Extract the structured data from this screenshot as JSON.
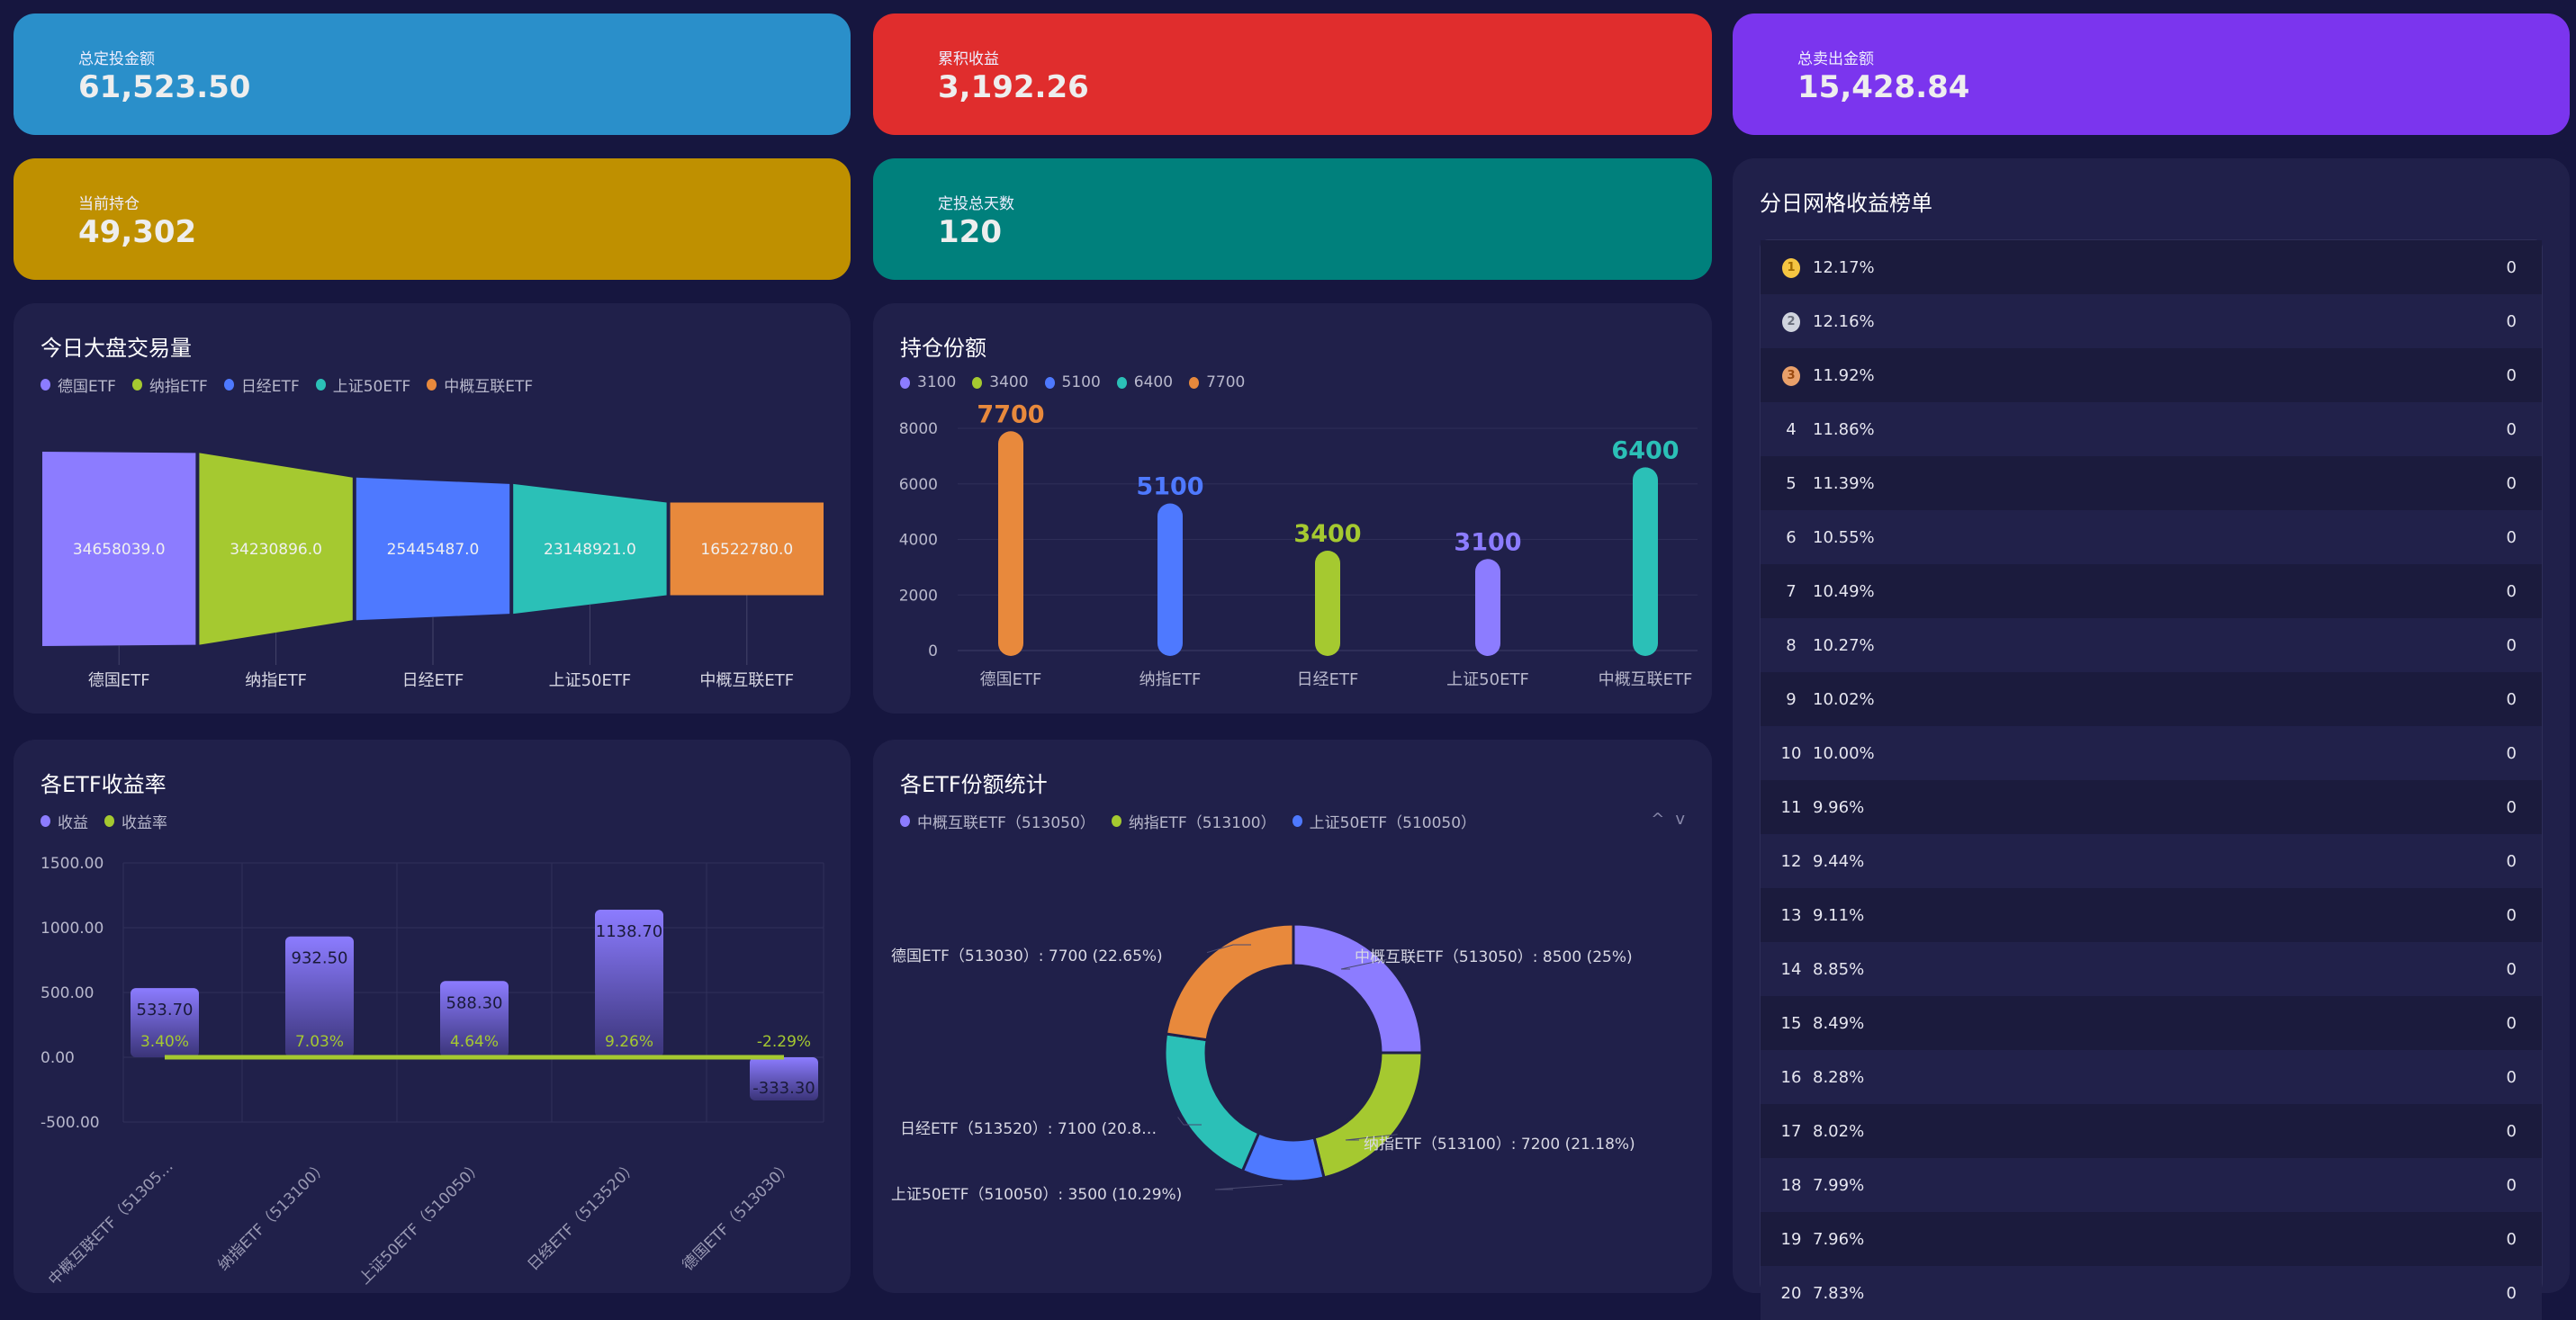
{
  "stats": [
    {
      "label": "总定投金额",
      "value": "61,523.50",
      "color": "#2a8fca"
    },
    {
      "label": "累积收益",
      "value": "3,192.26",
      "color": "#e02d2d"
    },
    {
      "label": "总卖出金额",
      "value": "15,428.84",
      "color": "#7b35ee"
    },
    {
      "label": "当前持仓",
      "value": "49,302",
      "color": "#bf9000"
    },
    {
      "label": "定投总天数",
      "value": "120",
      "color": "#00807c"
    }
  ],
  "colors": {
    "purple": "#8c7cff",
    "green": "#a5c930",
    "blue": "#4e79ff",
    "teal": "#2bc0b7",
    "orange": "#e8893c"
  },
  "chart_data": [
    {
      "type": "funnel",
      "title": "今日大盘交易量",
      "orientation": "horizontal",
      "categories": [
        "德国ETF",
        "纳指ETF",
        "日经ETF",
        "上证50ETF",
        "中概互联ETF"
      ],
      "values": [
        34658039.0,
        34230896.0,
        25445487.0,
        23148921.0,
        16522780.0
      ],
      "labels": [
        "34658039.0",
        "34230896.0",
        "25445487.0",
        "23148921.0",
        "16522780.0"
      ],
      "legend": [
        "德国ETF",
        "纳指ETF",
        "日经ETF",
        "上证50ETF",
        "中概互联ETF"
      ],
      "series_colors": [
        "#8c7cff",
        "#a5c930",
        "#4e79ff",
        "#2bc0b7",
        "#e8893c"
      ],
      "legend_position": "top-left"
    },
    {
      "type": "bar",
      "title": "持仓份额",
      "categories": [
        "德国ETF",
        "纳指ETF",
        "日经ETF",
        "上证50ETF",
        "中概互联ETF"
      ],
      "values": [
        7700,
        5100,
        3400,
        3100,
        6400
      ],
      "bar_colors": [
        "#e8893c",
        "#4e79ff",
        "#a5c930",
        "#8c7cff",
        "#2bc0b7"
      ],
      "legend": [
        "3100",
        "3400",
        "5100",
        "6400",
        "7700"
      ],
      "legend_colors": [
        "#8c7cff",
        "#a5c930",
        "#4e79ff",
        "#2bc0b7",
        "#e8893c"
      ],
      "yticks": [
        "0",
        "2000",
        "4000",
        "6000",
        "8000"
      ],
      "ylim": [
        0,
        8000
      ],
      "grid": true,
      "legend_position": "top-left"
    },
    {
      "type": "bar",
      "title": "各ETF收益率",
      "categories": [
        "中概互联ETF（51305…",
        "纳指ETF（513100）",
        "上证50ETF（510050）",
        "日经ETF（513520）",
        "德国ETF（513030）"
      ],
      "series": [
        {
          "name": "收益",
          "values": [
            533.7,
            932.5,
            588.3,
            1138.7,
            -333.3
          ],
          "labels": [
            "533.70",
            "932.50",
            "588.30",
            "1138.70",
            "-333.30"
          ],
          "color": "#8c7cff"
        },
        {
          "name": "收益率",
          "type": "line",
          "values": [
            3.4,
            7.03,
            4.64,
            9.26,
            -2.29
          ],
          "labels": [
            "3.40%",
            "7.03%",
            "4.64%",
            "9.26%",
            "-2.29%"
          ],
          "color": "#a5c930"
        }
      ],
      "yticks": [
        "1500.00",
        "1000.00",
        "500.00",
        "0.00",
        "-500.00"
      ],
      "ylim": [
        -500,
        1500
      ],
      "grid": true,
      "legend_position": "top-left"
    },
    {
      "type": "pie",
      "title": "各ETF份额统计",
      "donut": true,
      "slices": [
        {
          "name": "中概互联ETF（513050）",
          "value": 8500,
          "label": "中概互联ETF（513050）: 8500 (25%)",
          "color": "#8c7cff"
        },
        {
          "name": "纳指ETF（513100）",
          "value": 7200,
          "label": "纳指ETF（513100）: 7200 (21.18%)",
          "color": "#a5c930"
        },
        {
          "name": "上证50ETF（510050）",
          "value": 3500,
          "label": "上证50ETF（510050）: 3500 (10.29%)",
          "color": "#4e79ff"
        },
        {
          "name": "日经ETF（513520）",
          "value": 7100,
          "label": "日经ETF（513520）: 7100 (20.8…",
          "color": "#2bc0b7"
        },
        {
          "name": "德国ETF（513030）",
          "value": 7700,
          "label": "德国ETF（513030）: 7700 (22.65%)",
          "color": "#e8893c"
        }
      ],
      "legend": [
        "中概互联ETF（513050）",
        "纳指ETF（513100）",
        "上证50ETF（510050）"
      ],
      "legend_position": "top-left"
    }
  ],
  "pager": {
    "up": "^",
    "down": "v"
  },
  "ranking": {
    "title": "分日网格收益榜单",
    "rows": [
      {
        "rank": "1",
        "pct": "12.17%",
        "value": "0"
      },
      {
        "rank": "2",
        "pct": "12.16%",
        "value": "0"
      },
      {
        "rank": "3",
        "pct": "11.92%",
        "value": "0"
      },
      {
        "rank": "4",
        "pct": "11.86%",
        "value": "0"
      },
      {
        "rank": "5",
        "pct": "11.39%",
        "value": "0"
      },
      {
        "rank": "6",
        "pct": "10.55%",
        "value": "0"
      },
      {
        "rank": "7",
        "pct": "10.49%",
        "value": "0"
      },
      {
        "rank": "8",
        "pct": "10.27%",
        "value": "0"
      },
      {
        "rank": "9",
        "pct": "10.02%",
        "value": "0"
      },
      {
        "rank": "10",
        "pct": "10.00%",
        "value": "0"
      },
      {
        "rank": "11",
        "pct": "9.96%",
        "value": "0"
      },
      {
        "rank": "12",
        "pct": "9.44%",
        "value": "0"
      },
      {
        "rank": "13",
        "pct": "9.11%",
        "value": "0"
      },
      {
        "rank": "14",
        "pct": "8.85%",
        "value": "0"
      },
      {
        "rank": "15",
        "pct": "8.49%",
        "value": "0"
      },
      {
        "rank": "16",
        "pct": "8.28%",
        "value": "0"
      },
      {
        "rank": "17",
        "pct": "8.02%",
        "value": "0"
      },
      {
        "rank": "18",
        "pct": "7.99%",
        "value": "0"
      },
      {
        "rank": "19",
        "pct": "7.96%",
        "value": "0"
      },
      {
        "rank": "20",
        "pct": "7.83%",
        "value": "0"
      }
    ]
  }
}
